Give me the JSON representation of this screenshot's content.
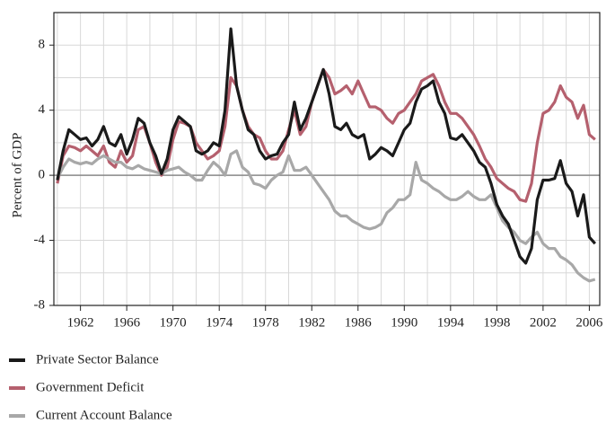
{
  "chart_data": {
    "type": "line",
    "ylabel": "Percent of GDP",
    "xlim": [
      1959.7,
      2006.9
    ],
    "ylim": [
      -8,
      10
    ],
    "xticks": [
      1962,
      1966,
      1970,
      1974,
      1978,
      1982,
      1986,
      1990,
      1994,
      1998,
      2002,
      2006
    ],
    "xminor": [
      1960,
      1964,
      1968,
      1972,
      1976,
      1980,
      1984,
      1988,
      1992,
      1996,
      2000,
      2004
    ],
    "yticks": [
      -8,
      -4,
      0,
      4,
      8
    ],
    "yminor": [
      -6,
      -2,
      2,
      6
    ],
    "grid": true,
    "legend": "bottom-left",
    "x": [
      1960,
      1960.5,
      1961,
      1961.5,
      1962,
      1962.5,
      1963,
      1963.5,
      1964,
      1964.5,
      1965,
      1965.5,
      1966,
      1966.5,
      1967,
      1967.5,
      1968,
      1968.5,
      1969,
      1969.5,
      1970,
      1970.5,
      1971,
      1971.5,
      1972,
      1972.5,
      1973,
      1973.5,
      1974,
      1974.5,
      1975,
      1975.5,
      1976,
      1976.5,
      1977,
      1977.5,
      1978,
      1978.5,
      1979,
      1979.5,
      1980,
      1980.5,
      1981,
      1981.5,
      1982,
      1982.5,
      1983,
      1983.5,
      1984,
      1984.5,
      1985,
      1985.5,
      1986,
      1986.5,
      1987,
      1987.5,
      1988,
      1988.5,
      1989,
      1989.5,
      1990,
      1990.5,
      1991,
      1991.5,
      1992,
      1992.5,
      1993,
      1993.5,
      1994,
      1994.5,
      1995,
      1995.5,
      1996,
      1996.5,
      1997,
      1997.5,
      1998,
      1998.5,
      1999,
      1999.5,
      2000,
      2000.5,
      2001,
      2001.5,
      2002,
      2002.5,
      2003,
      2003.5,
      2004,
      2004.5,
      2005,
      2005.5,
      2006,
      2006.5
    ],
    "series": [
      {
        "name": "Government Deficit",
        "color": "#b5606e",
        "values": [
          -0.5,
          1.2,
          1.8,
          1.7,
          1.5,
          1.8,
          1.5,
          1.2,
          1.8,
          0.8,
          0.5,
          1.5,
          0.8,
          1.2,
          2.8,
          3.0,
          2.0,
          0.8,
          0.0,
          0.5,
          2.2,
          3.3,
          3.2,
          3.0,
          2.0,
          1.5,
          1.0,
          1.2,
          1.5,
          3.0,
          6.0,
          5.5,
          4.0,
          3.0,
          2.5,
          2.3,
          1.5,
          1.0,
          1.0,
          1.5,
          2.8,
          4.0,
          2.5,
          3.0,
          4.5,
          5.5,
          6.5,
          6.0,
          5.0,
          5.2,
          5.5,
          5.0,
          5.8,
          5.0,
          4.2,
          4.2,
          4.0,
          3.5,
          3.2,
          3.8,
          4.0,
          4.5,
          5.0,
          5.8,
          6.0,
          6.2,
          5.5,
          4.5,
          3.8,
          3.8,
          3.5,
          3.0,
          2.5,
          1.8,
          1.0,
          0.5,
          -0.2,
          -0.5,
          -0.8,
          -1.0,
          -1.5,
          -1.6,
          -0.5,
          2.0,
          3.8,
          4.0,
          4.5,
          5.5,
          4.8,
          4.5,
          3.5,
          4.3,
          2.5,
          2.2
        ]
      },
      {
        "name": "Current Account Balance",
        "color": "#a8a8a8",
        "values": [
          -0.2,
          0.5,
          1.0,
          0.8,
          0.7,
          0.8,
          0.7,
          1.0,
          1.2,
          1.0,
          0.8,
          0.8,
          0.5,
          0.4,
          0.6,
          0.4,
          0.3,
          0.2,
          0.1,
          0.3,
          0.4,
          0.5,
          0.2,
          0.0,
          -0.3,
          -0.3,
          0.3,
          0.8,
          0.5,
          0.0,
          1.3,
          1.5,
          0.5,
          0.2,
          -0.5,
          -0.6,
          -0.8,
          -0.3,
          0.0,
          0.2,
          1.2,
          0.3,
          0.3,
          0.5,
          0.0,
          -0.5,
          -1.0,
          -1.5,
          -2.2,
          -2.5,
          -2.5,
          -2.8,
          -3.0,
          -3.2,
          -3.3,
          -3.2,
          -3.0,
          -2.3,
          -2.0,
          -1.5,
          -1.5,
          -1.2,
          0.8,
          -0.3,
          -0.5,
          -0.8,
          -1.0,
          -1.3,
          -1.5,
          -1.5,
          -1.3,
          -1.0,
          -1.3,
          -1.5,
          -1.5,
          -1.2,
          -2.0,
          -2.8,
          -3.2,
          -3.5,
          -4.0,
          -4.2,
          -3.8,
          -3.5,
          -4.2,
          -4.5,
          -4.5,
          -5.0,
          -5.2,
          -5.5,
          -6.0,
          -6.3,
          -6.5,
          -6.4
        ]
      },
      {
        "name": "Private Sector Balance",
        "color": "#1a1a1a",
        "values": [
          -0.3,
          1.5,
          2.8,
          2.5,
          2.2,
          2.3,
          1.8,
          2.2,
          3.0,
          2.0,
          1.8,
          2.5,
          1.3,
          2.2,
          3.5,
          3.2,
          2.0,
          1.2,
          0.1,
          1.0,
          2.8,
          3.6,
          3.3,
          3.0,
          1.5,
          1.3,
          1.5,
          2.0,
          1.8,
          4.0,
          9.0,
          5.5,
          4.0,
          2.8,
          2.5,
          1.5,
          1.0,
          1.2,
          1.3,
          2.0,
          2.5,
          4.5,
          2.8,
          3.5,
          4.5,
          5.5,
          6.5,
          5.0,
          3.0,
          2.8,
          3.2,
          2.5,
          2.3,
          2.5,
          1.0,
          1.3,
          1.7,
          1.5,
          1.2,
          2.0,
          2.8,
          3.2,
          4.5,
          5.3,
          5.5,
          5.8,
          4.5,
          3.8,
          2.3,
          2.2,
          2.5,
          2.0,
          1.5,
          0.8,
          0.5,
          -0.5,
          -1.8,
          -2.5,
          -3.0,
          -4.0,
          -5.0,
          -5.4,
          -4.5,
          -1.5,
          -0.3,
          -0.3,
          -0.2,
          0.9,
          -0.5,
          -1.0,
          -2.5,
          -1.2,
          -3.8,
          -4.2
        ]
      }
    ],
    "legend_order": [
      "Private Sector Balance",
      "Government Deficit",
      "Current Account Balance"
    ]
  }
}
